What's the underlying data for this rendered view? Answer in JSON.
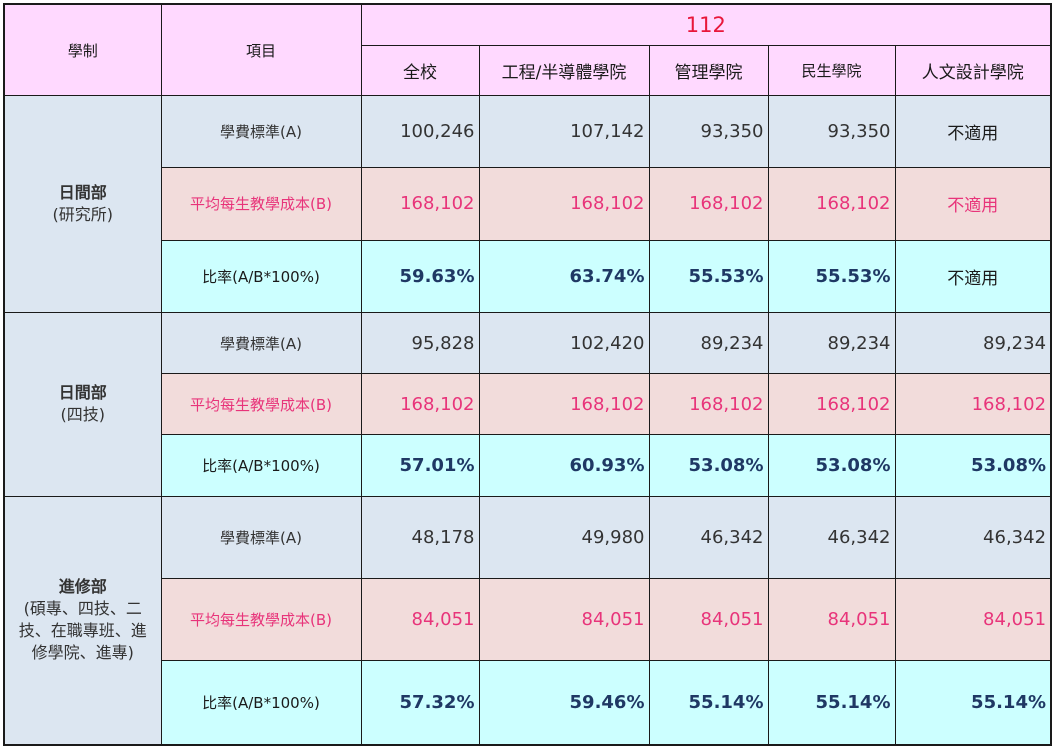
{
  "header": {
    "system_label": "學制",
    "item_label": "項目",
    "year": "112",
    "colleges": [
      "全校",
      "工程/半導體學院",
      "管理學院",
      "民生學院",
      "人文設計學院"
    ]
  },
  "row_labels": {
    "fee": "學費標準(A)",
    "cost": "平均每生教學成本(B)",
    "ratio": "比率(A/B*100%)"
  },
  "groups": [
    {
      "title": "日間部",
      "subtitle_lines": [
        "(研究所)"
      ],
      "fee": [
        "100,246",
        "107,142",
        "93,350",
        "93,350",
        "不適用"
      ],
      "cost": [
        "168,102",
        "168,102",
        "168,102",
        "168,102",
        "不適用"
      ],
      "ratio": [
        "59.63%",
        "63.74%",
        "55.53%",
        "55.53%",
        "不適用"
      ]
    },
    {
      "title": "日間部",
      "subtitle_lines": [
        "(四技)"
      ],
      "fee": [
        "95,828",
        "102,420",
        "89,234",
        "89,234",
        "89,234"
      ],
      "cost": [
        "168,102",
        "168,102",
        "168,102",
        "168,102",
        "168,102"
      ],
      "ratio": [
        "57.01%",
        "60.93%",
        "53.08%",
        "53.08%",
        "53.08%"
      ]
    },
    {
      "title": "進修部",
      "subtitle_lines": [
        "(碩專、四技、二",
        "技、在職專班、進",
        "修學院、進專)"
      ],
      "fee": [
        "48,178",
        "49,980",
        "46,342",
        "46,342",
        "46,342"
      ],
      "cost": [
        "84,051",
        "84,051",
        "84,051",
        "84,051",
        "84,051"
      ],
      "ratio": [
        "57.32%",
        "59.46%",
        "55.14%",
        "55.14%",
        "55.14%"
      ]
    }
  ],
  "colors": {
    "header_bg": "#ffd9ff",
    "system_bg": "#ccffff",
    "fee_row_bg": "#dce6f1",
    "cost_row_bg": "#f2dcdb",
    "ratio_row_bg": "#ccffff",
    "year_text": "#e8163a",
    "cost_text": "#e8347a",
    "ratio_text": "#1f3864"
  }
}
